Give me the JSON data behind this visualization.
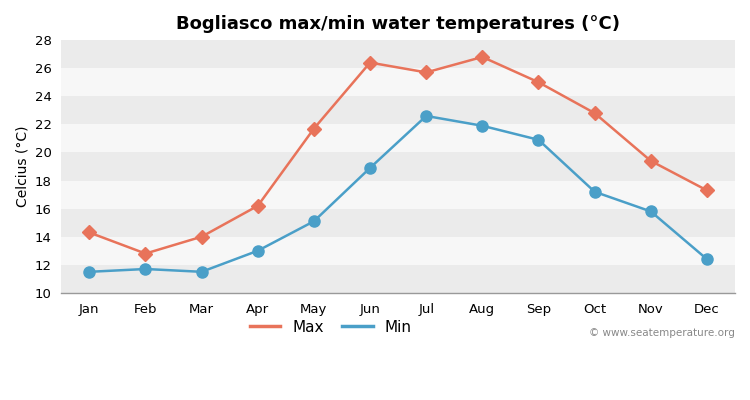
{
  "title": "Bogliasco max/min water temperatures (°C)",
  "xlabel": "",
  "ylabel": "Celcius (°C)",
  "months": [
    "Jan",
    "Feb",
    "Mar",
    "Apr",
    "May",
    "Jun",
    "Jul",
    "Aug",
    "Sep",
    "Oct",
    "Nov",
    "Dec"
  ],
  "max_temps": [
    14.3,
    12.8,
    14.0,
    16.2,
    21.7,
    26.4,
    25.7,
    26.8,
    25.0,
    22.8,
    19.4,
    17.3
  ],
  "min_temps": [
    11.5,
    11.7,
    11.5,
    13.0,
    15.1,
    18.9,
    22.6,
    21.9,
    20.9,
    17.2,
    15.8,
    12.4
  ],
  "max_color": "#e8735a",
  "min_color": "#4a9fc8",
  "background_color": "#ffffff",
  "plot_bg_color": "#ffffff",
  "band_color_even": "#ebebeb",
  "band_color_odd": "#f7f7f7",
  "ylim": [
    10,
    28
  ],
  "yticks": [
    10,
    12,
    14,
    16,
    18,
    20,
    22,
    24,
    26,
    28
  ],
  "watermark": "© www.seatemperature.org",
  "legend_labels": [
    "Max",
    "Min"
  ],
  "title_fontsize": 13,
  "axis_fontsize": 10,
  "tick_fontsize": 9.5,
  "linewidth": 1.8,
  "max_marker": "D",
  "min_marker": "o",
  "max_markersize": 7,
  "min_markersize": 8
}
